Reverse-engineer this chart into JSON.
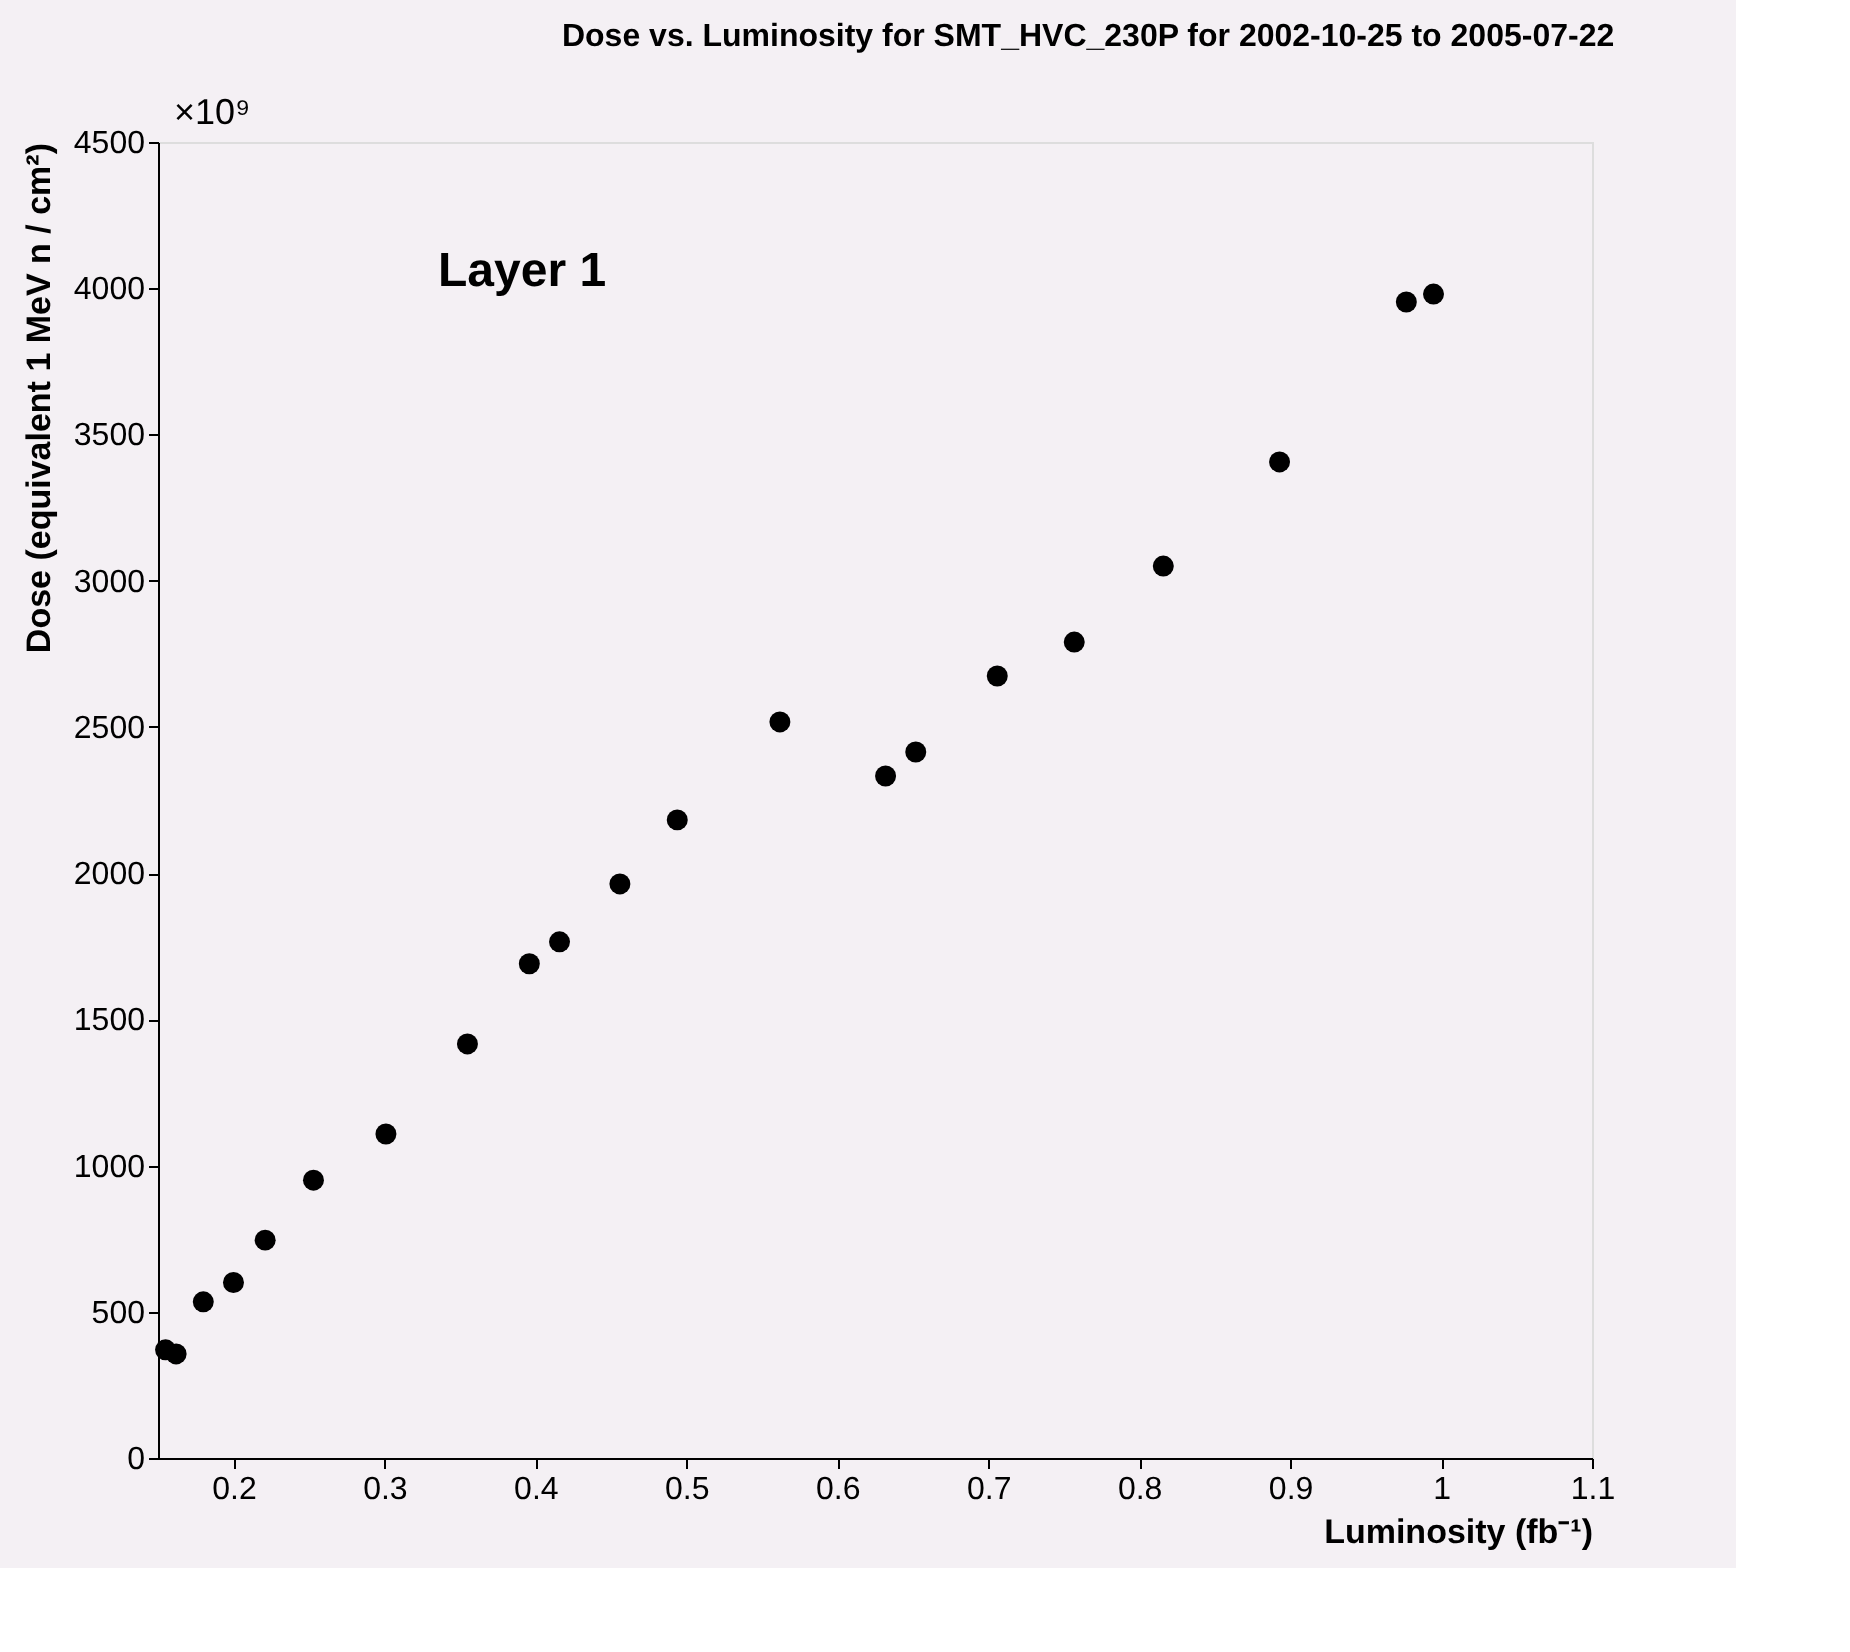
{
  "chart_data": {
    "type": "scatter",
    "title": "Dose vs. Luminosity for SMT_HVC_230P for 2002-10-25 to 2005-07-22",
    "xlabel": "Luminosity (fb⁻¹)",
    "ylabel": "Dose (equivalent 1 MeV n / cm²)",
    "annotations": [
      "×10⁹",
      "Layer 1"
    ],
    "x": [
      0.155,
      0.162,
      0.18,
      0.2,
      0.221,
      0.253,
      0.301,
      0.355,
      0.396,
      0.416,
      0.456,
      0.494,
      0.562,
      0.632,
      0.652,
      0.706,
      0.757,
      0.816,
      0.893,
      0.977,
      0.995
    ],
    "series": [
      {
        "color": "#000000",
        "values": [
          370,
          356,
          534,
          600,
          745,
          950,
          1108,
          1416,
          1690,
          1765,
          1963,
          2182,
          2517,
          2332,
          2414,
          2674,
          2790,
          3050,
          3406,
          3953,
          3980
        ]
      }
    ],
    "xlim": [
      0.15,
      1.1
    ],
    "xticks": [
      0.2,
      0.3,
      0.4,
      0.5,
      0.6,
      0.7,
      0.8,
      0.9,
      1,
      1.1
    ],
    "ylim": [
      0,
      4500
    ],
    "yticks": [
      0,
      500,
      1000,
      1500,
      2000,
      2500,
      3000,
      3500,
      4000,
      4500
    ],
    "marker": "circle",
    "grid": false,
    "legend": false
  }
}
